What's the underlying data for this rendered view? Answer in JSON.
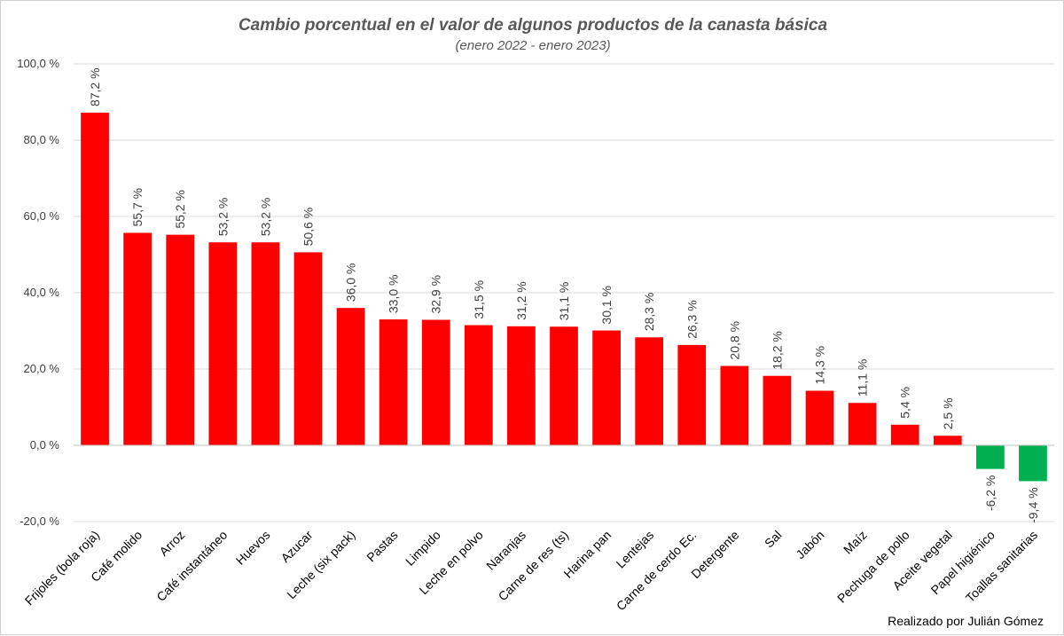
{
  "chart_data": {
    "type": "bar",
    "title": "Cambio porcentual en el valor de algunos productos de la canasta básica",
    "subtitle": "(enero 2022 - enero 2023)",
    "credit": "Realizado por Julián Gómez",
    "categories": [
      "Frijoles (bola roja)",
      "Café molido",
      "Arroz",
      "Café instantáneo",
      "Huevos",
      "Azucar",
      "Leche (six pack)",
      "Pastas",
      "Limpido",
      "Leche en polvo",
      "Naranjas",
      "Carne de res (ts)",
      "Harina pan",
      "Lentejas",
      "Carne de cerdo Ec.",
      "Detergente",
      "Sal",
      "Jabón",
      "Maíz",
      "Pechuga de pollo",
      "Aceite vegetal",
      "Papel higiénico",
      "Toallas sanitarias"
    ],
    "values": [
      87.2,
      55.7,
      55.2,
      53.2,
      53.2,
      50.6,
      36.0,
      33.0,
      32.9,
      31.5,
      31.2,
      31.1,
      30.1,
      28.3,
      26.3,
      20.8,
      18.2,
      14.3,
      11.1,
      5.4,
      2.5,
      -6.2,
      -9.4
    ],
    "data_labels": [
      "87,2 %",
      "55,7 %",
      "55,2 %",
      "53,2 %",
      "53,2 %",
      "50,6 %",
      "36,0 %",
      "33,0 %",
      "32,9 %",
      "31,5 %",
      "31,2 %",
      "31,1 %",
      "30,1 %",
      "28,3 %",
      "26,3 %",
      "20,8 %",
      "18,2 %",
      "14,3 %",
      "11,1 %",
      "5,4 %",
      "2,5 %",
      "-6,2 %",
      "-9,4 %"
    ],
    "yticks": [
      100,
      80,
      60,
      40,
      20,
      0,
      -20
    ],
    "ytick_labels": [
      "100,0 %",
      "80,0 %",
      "60,0 %",
      "40,0 %",
      "20,0 %",
      "0,0 %",
      "-20,0 %"
    ],
    "ylim": [
      -20,
      100
    ],
    "grid": true,
    "colors": {
      "positive": "#ff0000",
      "negative": "#00b050"
    }
  }
}
